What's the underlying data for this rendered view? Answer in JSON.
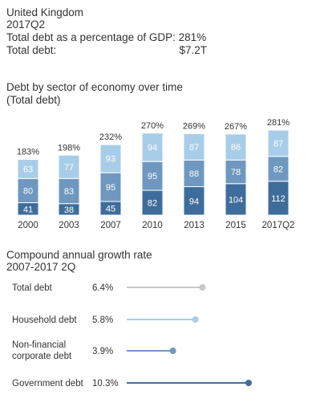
{
  "header": {
    "country": "United Kingdom",
    "period": "2017Q2",
    "debt_pct_label": "Total debt as a percentage of GDP:",
    "debt_pct_value": "281%",
    "total_debt_label": "Total debt:",
    "total_debt_value": "$7.2T"
  },
  "stacked": {
    "title_line1": "Debt by sector of economy over time",
    "title_line2": "(Total debt)"
  },
  "cagr": {
    "title_line1": "Compound annual growth rate",
    "title_line2": "2007-2017 2Q"
  },
  "colors": {
    "government": "#3f6d9b",
    "corporate": "#6f98c0",
    "household": "#a8cde8",
    "total_line": "#c8c8c8",
    "total_dot": "#c8c8c8",
    "household_line": "#a8cde8",
    "corporate_line": "#6f98c0",
    "government_line": "#3f6d9b"
  },
  "chart_data": [
    {
      "type": "bar",
      "stacked": true,
      "title": "Debt by sector of economy over time",
      "subtitle": "(Total debt)",
      "categories": [
        "2000",
        "2003",
        "2007",
        "2010",
        "2013",
        "2015",
        "2017Q2"
      ],
      "series": [
        {
          "key": "government",
          "values": [
            41,
            38,
            45,
            82,
            94,
            104,
            112
          ]
        },
        {
          "key": "corporate",
          "values": [
            80,
            83,
            95,
            95,
            88,
            78,
            82
          ]
        },
        {
          "key": "household",
          "values": [
            63,
            77,
            93,
            94,
            87,
            86,
            87
          ]
        }
      ],
      "totals": [
        "183%",
        "198%",
        "232%",
        "270%",
        "269%",
        "267%",
        "281%"
      ],
      "ylim": [
        0,
        281
      ]
    },
    {
      "type": "dot-line",
      "title": "Compound annual growth rate",
      "subtitle": "2007-2017 2Q",
      "items": [
        {
          "label_lines": [
            "Total debt"
          ],
          "value_label": "6.4%",
          "value": 6.4,
          "color_key": "total_line"
        },
        {
          "label_lines": [
            "Household debt"
          ],
          "value_label": "5.8%",
          "value": 5.8,
          "color_key": "household_line"
        },
        {
          "label_lines": [
            "Non-financial",
            "corporate debt"
          ],
          "value_label": "3.9%",
          "value": 3.9,
          "color_key": "corporate_line"
        },
        {
          "label_lines": [
            "Government debt"
          ],
          "value_label": "10.3%",
          "value": 10.3,
          "color_key": "government_line"
        }
      ],
      "xlim": [
        0,
        10.3
      ]
    }
  ]
}
